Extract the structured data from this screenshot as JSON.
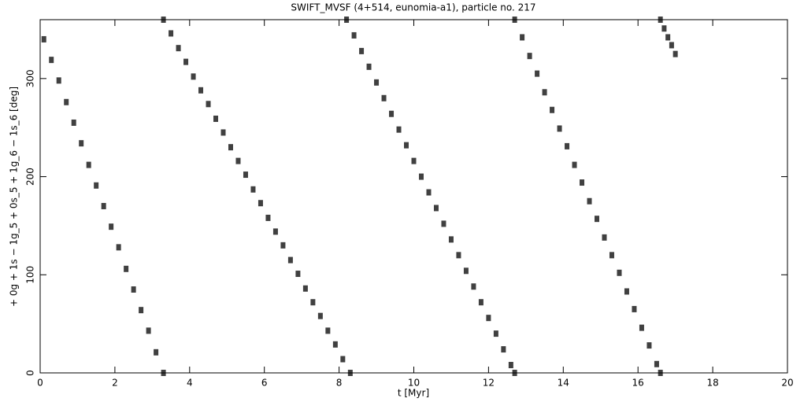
{
  "chart_data": {
    "type": "scatter",
    "title": "SWIFT_MVSF (4+514, eunomia-a1), particle no. 217",
    "x_label": "t [Myr]",
    "y_label": "+ 0g + 1s − 1g_5 + 0s_5 + 1g_6 − 1s_6 [deg]",
    "xlim": [
      0,
      20
    ],
    "ylim": [
      0,
      360
    ],
    "xticks": [
      0,
      2,
      4,
      6,
      8,
      10,
      12,
      14,
      16,
      18,
      20
    ],
    "yticks": [
      0,
      100,
      200,
      300
    ],
    "series": [
      {
        "color": "#000000",
        "x": [
          0.1,
          0.3,
          0.5,
          0.7,
          0.9,
          1.1,
          1.3,
          1.5,
          1.7,
          1.9,
          2.1,
          2.3,
          2.5,
          2.7,
          2.9,
          3.1,
          3.3,
          3.3,
          3.5,
          3.7,
          3.9,
          4.1,
          4.3,
          4.5,
          4.7,
          4.9,
          5.1,
          5.3,
          5.5,
          5.7,
          5.9,
          6.1,
          6.3,
          6.5,
          6.7,
          6.9,
          7.1,
          7.3,
          7.5,
          7.7,
          7.9,
          8.1,
          8.3,
          8.2,
          8.4,
          8.6,
          8.8,
          9.0,
          9.2,
          9.4,
          9.6,
          9.8,
          10.0,
          10.2,
          10.4,
          10.6,
          10.8,
          11.0,
          11.2,
          11.4,
          11.6,
          11.8,
          12.0,
          12.2,
          12.4,
          12.6,
          12.7,
          12.7,
          12.9,
          13.1,
          13.3,
          13.5,
          13.7,
          13.9,
          14.1,
          14.3,
          14.5,
          14.7,
          14.9,
          15.1,
          15.3,
          15.5,
          15.7,
          15.9,
          16.1,
          16.3,
          16.5,
          16.6,
          16.6,
          16.7,
          16.8,
          16.9,
          17.0
        ],
        "y": [
          340,
          319,
          298,
          276,
          255,
          234,
          212,
          191,
          170,
          149,
          128,
          106,
          85,
          64,
          43,
          21,
          0,
          360,
          346,
          331,
          317,
          302,
          288,
          274,
          259,
          245,
          230,
          216,
          202,
          187,
          173,
          158,
          144,
          130,
          115,
          101,
          86,
          72,
          58,
          43,
          29,
          14,
          0,
          360,
          344,
          328,
          312,
          296,
          280,
          264,
          248,
          232,
          216,
          200,
          184,
          168,
          152,
          136,
          120,
          104,
          88,
          72,
          56,
          40,
          24,
          8,
          0,
          360,
          342,
          323,
          305,
          286,
          268,
          249,
          231,
          212,
          194,
          175,
          157,
          138,
          120,
          102,
          83,
          65,
          46,
          28,
          9,
          0,
          360,
          351,
          342,
          334,
          325
        ]
      }
    ]
  }
}
